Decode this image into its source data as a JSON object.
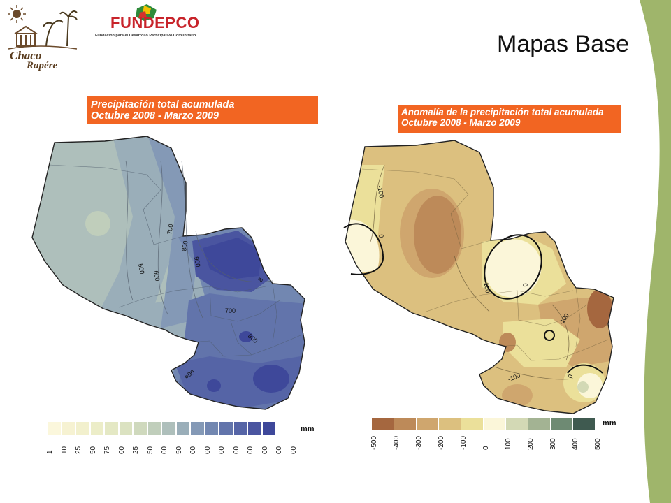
{
  "slide": {
    "title": "Mapas Base"
  },
  "logos": {
    "chaco_line1": "Chaco",
    "chaco_line2": "Rapére",
    "fundepco_name": "FUNDEPCO",
    "fundepco_subtitle": "Fundación para el Desarrollo Participativo Comunitario"
  },
  "colors": {
    "title_bg": "#f26522",
    "green_band": "#9fb56b",
    "fundepco_red": "#c8242b"
  },
  "map_left": {
    "title_line1": "Precipitación total acumulada",
    "title_line2": "Octubre 2008 - Marzo 2009",
    "isolines": [
      "500",
      "600",
      "700",
      "800",
      "900",
      "700",
      "800",
      "800",
      "8"
    ],
    "legend": {
      "unit": "mm",
      "ticks": [
        "1",
        "10",
        "25",
        "50",
        "75",
        "00",
        "25",
        "50",
        "00",
        "50",
        "00",
        "00",
        "00",
        "00",
        "00",
        "00",
        "00",
        "00"
      ],
      "colors": [
        "#fbf7dc",
        "#f6f2d2",
        "#f2f0cd",
        "#ecedc8",
        "#e4e8c4",
        "#dbe2c1",
        "#cfd9bd",
        "#c0cebb",
        "#aebfbb",
        "#9aaeb9",
        "#8499b6",
        "#7287b1",
        "#6274ab",
        "#5564a6",
        "#4a55a0",
        "#3e489a"
      ]
    }
  },
  "map_right": {
    "title_line1": "Anomalía de la precipitación total acumulada",
    "title_line2": "Octubre 2008 - Marzo 2009",
    "isolines": [
      "-100",
      "0",
      "-100",
      "0",
      "-100",
      "-100",
      "0"
    ],
    "legend": {
      "unit": "mm",
      "ticks": [
        "-500",
        "-400",
        "-300",
        "-200",
        "-100",
        "0",
        "100",
        "200",
        "300",
        "400",
        "500"
      ],
      "colors": [
        "#a5673f",
        "#bd8a59",
        "#cfa66e",
        "#dcc07f",
        "#ebe09a",
        "#fbf6d9",
        "#d3d9b5",
        "#a3b393",
        "#6e8a73",
        "#3f5a50"
      ]
    }
  }
}
